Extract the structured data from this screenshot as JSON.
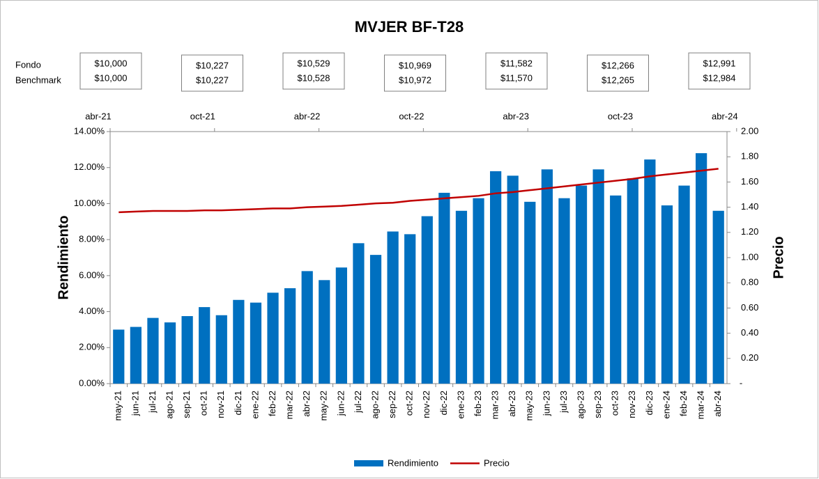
{
  "chart_data": {
    "type": "bar_line",
    "title": "MVJER BF-T28",
    "box_row_labels": [
      "Fondo",
      "Benchmark"
    ],
    "value_boxes": [
      [
        "$10,000",
        "$10,000"
      ],
      [
        "$10,227",
        "$10,227"
      ],
      [
        "$10,529",
        "$10,528"
      ],
      [
        "$10,969",
        "$10,972"
      ],
      [
        "$11,582",
        "$11,570"
      ],
      [
        "$12,266",
        "$12,265"
      ],
      [
        "$12,991",
        "$12,984"
      ]
    ],
    "top_axis_labels": [
      "abr-21",
      "oct-21",
      "abr-22",
      "oct-22",
      "abr-23",
      "oct-23",
      "abr-24"
    ],
    "y_axis_label": "Rendimiento",
    "y2_axis_label": "Precio",
    "categories": [
      "may-21",
      "jun-21",
      "jul-21",
      "ago-21",
      "sep-21",
      "oct-21",
      "nov-21",
      "dic-21",
      "ene-22",
      "feb-22",
      "mar-22",
      "abr-22",
      "may-22",
      "jun-22",
      "jul-22",
      "ago-22",
      "sep-22",
      "oct-22",
      "nov-22",
      "dic-22",
      "ene-23",
      "feb-23",
      "mar-23",
      "abr-23",
      "may-23",
      "jun-23",
      "jul-23",
      "ago-23",
      "sep-23",
      "oct-23",
      "nov-23",
      "dic-23",
      "ene-24",
      "feb-24",
      "mar-24",
      "abr-24"
    ],
    "series": [
      {
        "name": "Rendimiento",
        "type": "bar",
        "color": "#0070c0",
        "values": [
          3.0,
          3.15,
          3.65,
          3.4,
          3.75,
          4.25,
          3.8,
          4.65,
          4.5,
          5.05,
          5.3,
          6.25,
          5.75,
          6.45,
          7.8,
          7.15,
          8.45,
          8.3,
          9.3,
          10.6,
          9.6,
          10.3,
          11.8,
          11.55,
          10.1,
          11.9,
          10.3,
          11.0,
          11.9,
          10.45,
          11.4,
          12.45,
          9.9,
          11.0,
          12.8,
          9.6
        ]
      },
      {
        "name": "Precio",
        "type": "line",
        "axis": "y2",
        "color": "#c00000",
        "values": [
          1.36,
          1.365,
          1.37,
          1.37,
          1.37,
          1.375,
          1.375,
          1.38,
          1.385,
          1.39,
          1.39,
          1.4,
          1.405,
          1.41,
          1.42,
          1.43,
          1.435,
          1.45,
          1.46,
          1.47,
          1.48,
          1.49,
          1.51,
          1.52,
          1.535,
          1.55,
          1.565,
          1.58,
          1.595,
          1.61,
          1.625,
          1.645,
          1.66,
          1.675,
          1.69,
          1.705
        ]
      }
    ],
    "ylim": [
      0,
      14
    ],
    "yticks": [
      {
        "value": 0,
        "label": "0.00%"
      },
      {
        "value": 2,
        "label": "2.00%"
      },
      {
        "value": 4,
        "label": "4.00%"
      },
      {
        "value": 6,
        "label": "6.00%"
      },
      {
        "value": 8,
        "label": "8.00%"
      },
      {
        "value": 10,
        "label": "10.00%"
      },
      {
        "value": 12,
        "label": "12.00%"
      },
      {
        "value": 14,
        "label": "14.00%"
      }
    ],
    "y2lim": [
      0,
      2
    ],
    "y2ticks": [
      {
        "value": 0,
        "label": "-"
      },
      {
        "value": 0.2,
        "label": "0.20"
      },
      {
        "value": 0.4,
        "label": "0.40"
      },
      {
        "value": 0.6,
        "label": "0.60"
      },
      {
        "value": 0.8,
        "label": "0.80"
      },
      {
        "value": 1,
        "label": "1.00"
      },
      {
        "value": 1.2,
        "label": "1.20"
      },
      {
        "value": 1.4,
        "label": "1.40"
      },
      {
        "value": 1.6,
        "label": "1.60"
      },
      {
        "value": 1.8,
        "label": "1.80"
      },
      {
        "value": 2,
        "label": "2.00"
      }
    ],
    "legend": "bottom"
  }
}
